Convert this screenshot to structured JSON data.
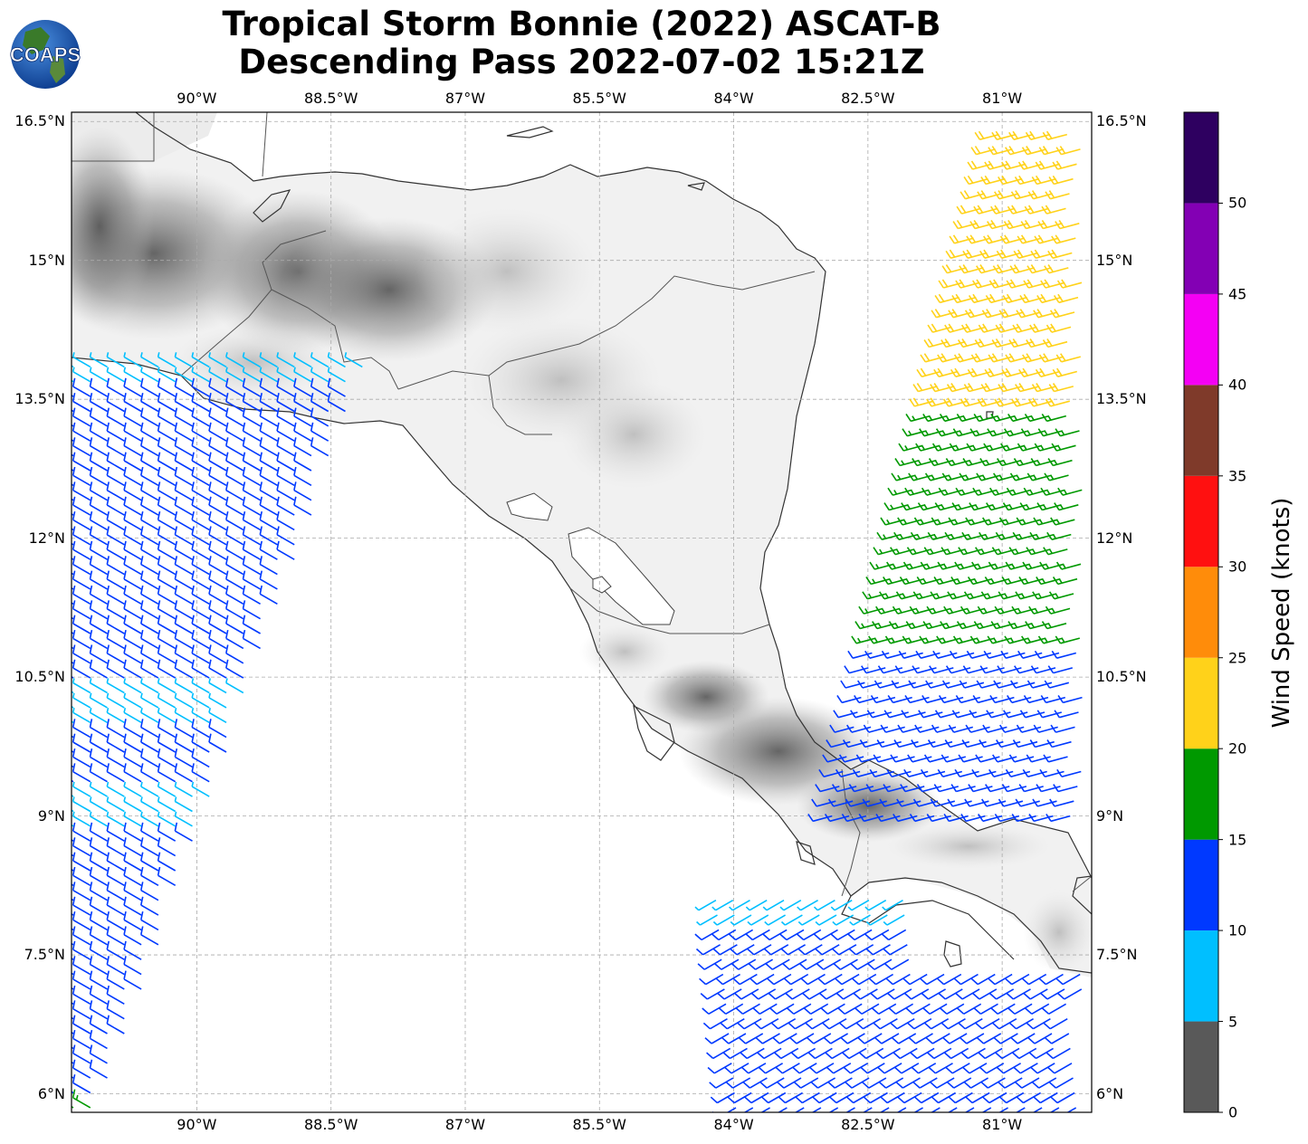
{
  "title": {
    "line1": "Tropical Storm Bonnie (2022) ASCAT-B",
    "line2": "Descending Pass 2022-07-02 15:21Z"
  },
  "logo": {
    "text": "COAPS",
    "icon": "coaps-globe-logo"
  },
  "map": {
    "lon_range": [
      -91.4,
      -80.0
    ],
    "lat_range": [
      5.8,
      16.6
    ],
    "gridlines": true,
    "lon_ticks": [
      {
        "value": -90.0,
        "label": "90°W"
      },
      {
        "value": -88.5,
        "label": "88.5°W"
      },
      {
        "value": -87.0,
        "label": "87°W"
      },
      {
        "value": -85.5,
        "label": "85.5°W"
      },
      {
        "value": -84.0,
        "label": "84°W"
      },
      {
        "value": -82.5,
        "label": "82.5°W"
      },
      {
        "value": -81.0,
        "label": "81°W"
      }
    ],
    "lat_ticks": [
      {
        "value": 16.5,
        "label": "16.5°N"
      },
      {
        "value": 15.0,
        "label": "15°N"
      },
      {
        "value": 13.5,
        "label": "13.5°N"
      },
      {
        "value": 12.0,
        "label": "12°N"
      },
      {
        "value": 10.5,
        "label": "10.5°N"
      },
      {
        "value": 9.0,
        "label": "9°N"
      },
      {
        "value": 7.5,
        "label": "7.5°N"
      },
      {
        "value": 6.0,
        "label": "6°N"
      }
    ]
  },
  "colorbar": {
    "label": "Wind Speed (knots)",
    "bins": [
      {
        "min": 0,
        "max": 5,
        "color": "#595959"
      },
      {
        "min": 5,
        "max": 10,
        "color": "#00bfff"
      },
      {
        "min": 10,
        "max": 15,
        "color": "#0039ff"
      },
      {
        "min": 15,
        "max": 20,
        "color": "#009900"
      },
      {
        "min": 20,
        "max": 25,
        "color": "#ffd21a"
      },
      {
        "min": 25,
        "max": 30,
        "color": "#ff8c0a"
      },
      {
        "min": 30,
        "max": 35,
        "color": "#ff1010"
      },
      {
        "min": 35,
        "max": 40,
        "color": "#7f3a2a"
      },
      {
        "min": 40,
        "max": 45,
        "color": "#f400f4"
      },
      {
        "min": 45,
        "max": 50,
        "color": "#8300b4"
      },
      {
        "min": 50,
        "max": 55,
        "color": "#2e0060"
      }
    ],
    "tick_labels": [
      "0",
      "5",
      "10",
      "15",
      "20",
      "25",
      "30",
      "35",
      "40",
      "45",
      "50"
    ]
  },
  "wind_swaths": [
    {
      "name": "west",
      "wind_dir_deg": 300,
      "lat_range": [
        5.8,
        13.9
      ],
      "speed_by_lat": [
        [
          5.8,
          16
        ],
        [
          6.2,
          13
        ],
        [
          8.5,
          12
        ],
        [
          9.0,
          8
        ],
        [
          9.6,
          12
        ],
        [
          10.2,
          8
        ],
        [
          10.6,
          12
        ],
        [
          13.5,
          11
        ],
        [
          13.8,
          8
        ]
      ]
    },
    {
      "name": "east",
      "wind_dir_deg": 255,
      "lat_range": [
        9.0,
        16.5
      ],
      "speed_by_lat": [
        [
          9.0,
          11
        ],
        [
          10.5,
          14
        ],
        [
          11.5,
          17
        ],
        [
          12.8,
          18
        ],
        [
          13.8,
          21
        ],
        [
          16.5,
          22
        ]
      ]
    },
    {
      "name": "south",
      "wind_dir_deg": 240,
      "lat_range": [
        5.8,
        8.2
      ],
      "speed_by_lat": [
        [
          5.8,
          13
        ],
        [
          7.0,
          12
        ],
        [
          8.2,
          9
        ]
      ]
    }
  ]
}
